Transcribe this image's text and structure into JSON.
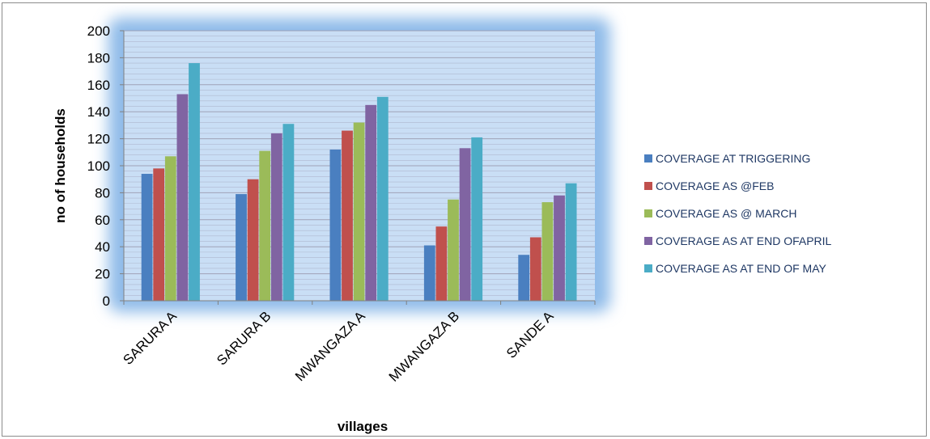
{
  "chart_data": {
    "type": "bar",
    "title": "",
    "xlabel": "villages",
    "ylabel": "no of households",
    "ylim": [
      0,
      200
    ],
    "ytick_step": 20,
    "yticks": [
      "0",
      "20",
      "40",
      "60",
      "80",
      "100",
      "120",
      "140",
      "160",
      "180",
      "200"
    ],
    "grid": true,
    "legend_position": "right",
    "categories": [
      "SARURA A",
      "SARURA B",
      "MWANGAZA A",
      "MWANGAZA B",
      "SANDE A"
    ],
    "series": [
      {
        "name": "COVERAGE AT TRIGGERING",
        "color": "#4a7fc0",
        "values": [
          94,
          79,
          112,
          41,
          34
        ]
      },
      {
        "name": "COVERAGE AS @FEB",
        "color": "#c0504d",
        "values": [
          98,
          90,
          126,
          55,
          47
        ]
      },
      {
        "name": "COVERAGE AS @ MARCH",
        "color": "#9bbb59",
        "values": [
          107,
          111,
          132,
          75,
          73
        ]
      },
      {
        "name": "COVERAGE AS AT END OFAPRIL",
        "color": "#8064a2",
        "values": [
          153,
          124,
          145,
          113,
          78
        ]
      },
      {
        "name": "COVERAGE AS AT END OF MAY",
        "color": "#4bacc6",
        "values": [
          176,
          131,
          151,
          121,
          87
        ]
      }
    ],
    "colors": {
      "plot_background": "#c9def5",
      "plot_glow": "#8fbbe9",
      "grid": "#9b9bb0",
      "axis": "#808080",
      "text": "#000000",
      "legend_text": "#1f3864"
    }
  }
}
